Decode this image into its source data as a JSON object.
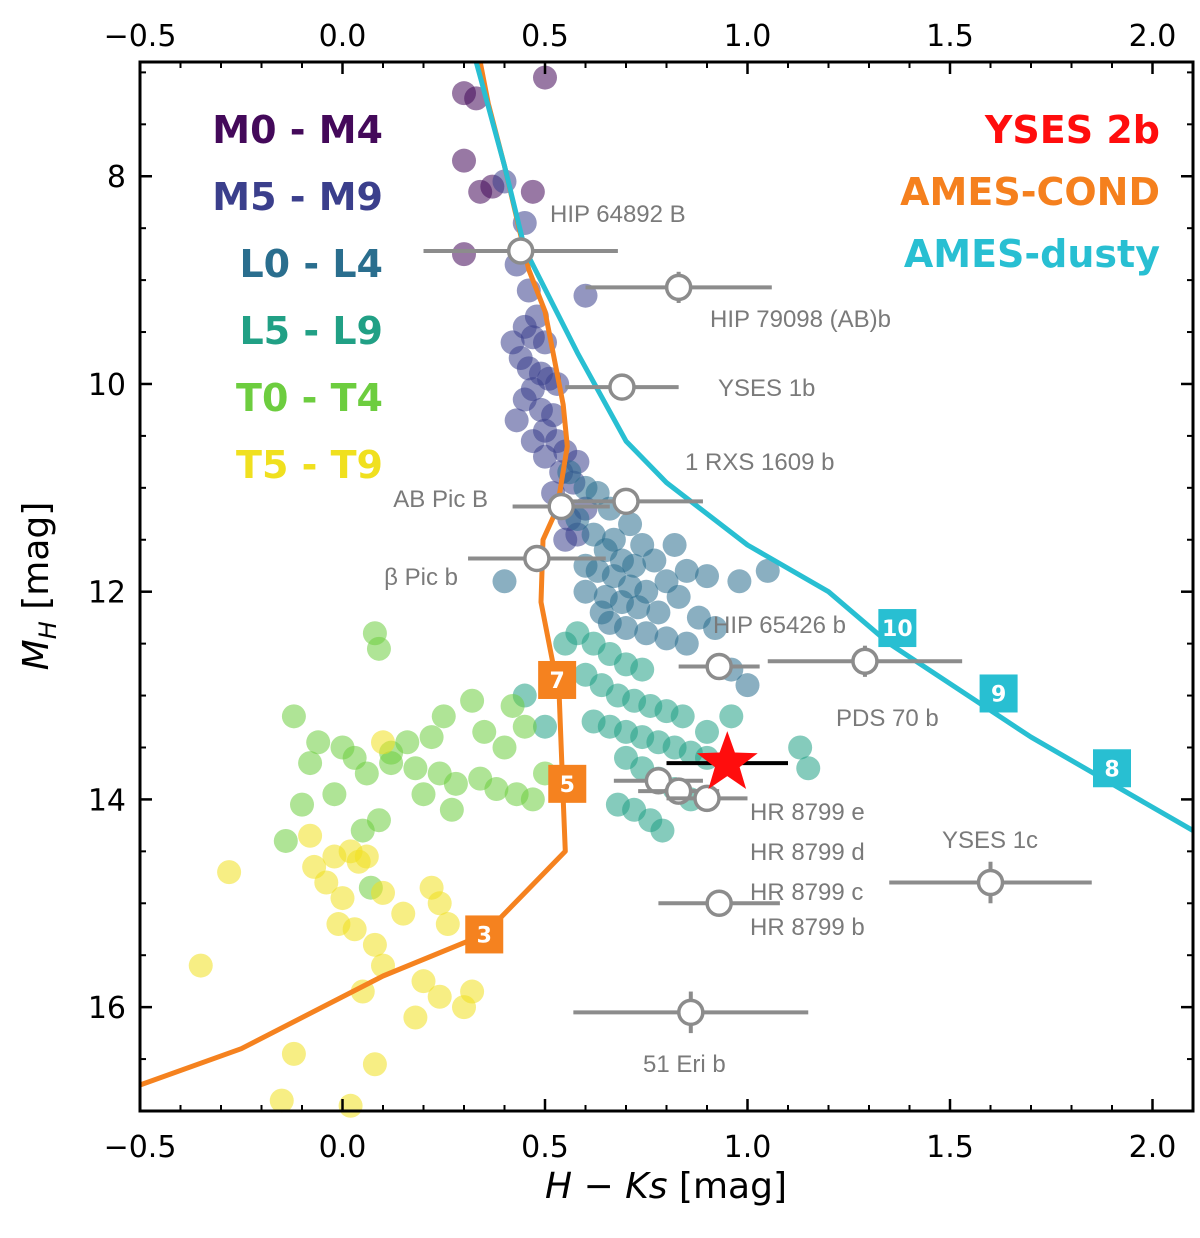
{
  "chart_data": {
    "type": "scatter",
    "xlabel": "H − Ks [mag]",
    "ylabel": "M_H [mag]",
    "xlim": [
      -0.5,
      2.1
    ],
    "ylim": [
      6.9,
      17.0
    ],
    "y_inverted": true,
    "x_ticks": [
      "−0.5",
      "0.0",
      "0.5",
      "1.0",
      "1.5",
      "2.0"
    ],
    "x_tick_values": [
      -0.5,
      0.0,
      0.5,
      1.0,
      1.5,
      2.0
    ],
    "y_ticks": [
      "8",
      "10",
      "12",
      "14",
      "16"
    ],
    "y_tick_values": [
      8,
      10,
      12,
      14,
      16
    ],
    "legend": [
      {
        "label": "M0 - M4",
        "color": "#44095a"
      },
      {
        "label": "M5 - M9",
        "color": "#3b3f8c"
      },
      {
        "label": "L0 - L4",
        "color": "#2a6e8e"
      },
      {
        "label": "L5 - L9",
        "color": "#21a085"
      },
      {
        "label": "T0 - T4",
        "color": "#6dcd3f"
      },
      {
        "label": "T5 - T9",
        "color": "#f0e01f"
      }
    ],
    "legend_right": [
      {
        "label": "YSES 2b",
        "color": "#ff0d0d"
      },
      {
        "label": "AMES-COND",
        "color": "#f5801e"
      },
      {
        "label": "AMES-dusty",
        "color": "#28bfd2"
      }
    ],
    "models": [
      {
        "name": "AMES-COND",
        "color": "#f5821f",
        "points": [
          [
            -0.5,
            16.75
          ],
          [
            -0.25,
            16.4
          ],
          [
            0.1,
            15.7
          ],
          [
            0.35,
            15.3
          ],
          [
            0.55,
            14.5
          ],
          [
            0.545,
            14.0
          ],
          [
            0.535,
            13.0
          ],
          [
            0.49,
            12.1
          ],
          [
            0.495,
            11.5
          ],
          [
            0.53,
            11.2
          ],
          [
            0.555,
            10.6
          ],
          [
            0.545,
            10.2
          ],
          [
            0.5,
            9.3
          ],
          [
            0.46,
            8.9
          ],
          [
            0.4,
            7.9
          ],
          [
            0.36,
            7.3
          ],
          [
            0.34,
            6.9
          ]
        ],
        "mass_labels": [
          {
            "x": 0.35,
            "y": 15.3,
            "label": "3"
          },
          {
            "x": 0.555,
            "y": 13.85,
            "label": "5"
          },
          {
            "x": 0.53,
            "y": 12.85,
            "label": "7"
          }
        ]
      },
      {
        "name": "AMES-dusty",
        "color": "#28bfd2",
        "points": [
          [
            0.33,
            6.9
          ],
          [
            0.4,
            7.9
          ],
          [
            0.45,
            8.7
          ],
          [
            0.58,
            9.7
          ],
          [
            0.7,
            10.55
          ],
          [
            0.8,
            10.95
          ],
          [
            1.0,
            11.55
          ],
          [
            1.2,
            12.0
          ],
          [
            1.35,
            12.5
          ],
          [
            1.7,
            13.4
          ],
          [
            2.1,
            14.3
          ]
        ],
        "mass_labels": [
          {
            "x": 1.37,
            "y": 12.35,
            "label": "10"
          },
          {
            "x": 1.62,
            "y": 12.98,
            "label": "9"
          },
          {
            "x": 1.9,
            "y": 13.7,
            "label": "8"
          }
        ]
      }
    ],
    "planets": [
      {
        "name": "HIP 64892 B",
        "x": 0.44,
        "y": 8.72,
        "xerr": 0.24,
        "yerr": 0.1
      },
      {
        "name": "HIP 79098 (AB)b",
        "x": 0.83,
        "y": 9.07,
        "xerr": 0.23,
        "yerr": 0.15
      },
      {
        "name": "YSES 1b",
        "x": 0.69,
        "y": 10.03,
        "xerr": 0.14,
        "yerr": 0.05
      },
      {
        "name": "1 RXS 1609 b",
        "x": 0.7,
        "y": 11.13,
        "xerr": 0.19,
        "yerr": 0.05
      },
      {
        "name": "AB Pic B",
        "x": 0.54,
        "y": 11.18,
        "xerr": 0.12,
        "yerr": 0.05
      },
      {
        "name": "β Pic b",
        "x": 0.48,
        "y": 11.68,
        "xerr": 0.17,
        "yerr": 0.05
      },
      {
        "name": "HIP 65426 b",
        "x": 0.93,
        "y": 12.72,
        "xerr": 0.1,
        "yerr": 0.08
      },
      {
        "name": "PDS 70 b",
        "x": 1.29,
        "y": 12.67,
        "xerr": 0.24,
        "yerr": 0.15
      },
      {
        "name": "HR 8799 e",
        "x": 0.78,
        "y": 13.82,
        "xerr": 0.11,
        "yerr": 0.05
      },
      {
        "name": "HR 8799 d",
        "x": 0.83,
        "y": 13.92,
        "xerr": 0.1,
        "yerr": 0.05
      },
      {
        "name": "HR 8799 c",
        "x": 0.9,
        "y": 13.99,
        "xerr": 0.1,
        "yerr": 0.05
      },
      {
        "name": "HR 8799 b",
        "x": 0.93,
        "y": 15.0,
        "xerr": 0.15,
        "yerr": 0.05
      },
      {
        "name": "YSES 1c",
        "x": 1.6,
        "y": 14.8,
        "xerr": 0.25,
        "yerr": 0.2
      },
      {
        "name": "51 Eri b",
        "x": 0.86,
        "y": 16.05,
        "xerr": 0.29,
        "yerr": 0.2
      }
    ],
    "target": {
      "name": "YSES 2b",
      "x": 0.95,
      "y": 13.65,
      "xerr": 0.15,
      "yerr": 0.08
    },
    "spectral_groups": [
      {
        "label": "M0 - M4",
        "color": "#44095a",
        "points": [
          [
            0.3,
            7.2
          ],
          [
            0.33,
            7.25
          ],
          [
            0.5,
            7.05
          ],
          [
            0.3,
            7.85
          ],
          [
            0.34,
            8.15
          ],
          [
            0.37,
            8.1
          ],
          [
            0.47,
            8.15
          ],
          [
            0.3,
            8.75
          ]
        ]
      },
      {
        "label": "M5 - M9",
        "color": "#3b3f8c",
        "points": [
          [
            0.4,
            8.05
          ],
          [
            0.45,
            8.45
          ],
          [
            0.43,
            8.85
          ],
          [
            0.46,
            9.1
          ],
          [
            0.6,
            9.15
          ],
          [
            0.45,
            9.45
          ],
          [
            0.47,
            9.55
          ],
          [
            0.5,
            9.6
          ],
          [
            0.44,
            9.75
          ],
          [
            0.46,
            9.85
          ],
          [
            0.49,
            9.9
          ],
          [
            0.51,
            9.95
          ],
          [
            0.47,
            10.05
          ],
          [
            0.45,
            10.15
          ],
          [
            0.49,
            10.25
          ],
          [
            0.52,
            10.3
          ],
          [
            0.5,
            10.45
          ],
          [
            0.53,
            10.55
          ],
          [
            0.55,
            10.65
          ],
          [
            0.5,
            10.7
          ],
          [
            0.54,
            10.85
          ],
          [
            0.57,
            10.95
          ],
          [
            0.52,
            11.05
          ],
          [
            0.56,
            11.3
          ],
          [
            0.58,
            11.45
          ],
          [
            0.55,
            11.5
          ],
          [
            0.6,
            11.2
          ],
          [
            0.42,
            9.6
          ],
          [
            0.48,
            9.35
          ],
          [
            0.53,
            10.0
          ],
          [
            0.43,
            10.35
          ],
          [
            0.47,
            10.55
          ],
          [
            0.58,
            10.75
          ]
        ]
      },
      {
        "label": "L0 - L4",
        "color": "#2a6e8e",
        "points": [
          [
            0.56,
            10.85
          ],
          [
            0.6,
            11.0
          ],
          [
            0.63,
            11.05
          ],
          [
            0.66,
            11.2
          ],
          [
            0.58,
            11.3
          ],
          [
            0.62,
            11.45
          ],
          [
            0.67,
            11.5
          ],
          [
            0.71,
            11.35
          ],
          [
            0.74,
            11.55
          ],
          [
            0.65,
            11.6
          ],
          [
            0.69,
            11.7
          ],
          [
            0.72,
            11.75
          ],
          [
            0.77,
            11.7
          ],
          [
            0.63,
            11.8
          ],
          [
            0.67,
            11.85
          ],
          [
            0.71,
            11.95
          ],
          [
            0.75,
            12.0
          ],
          [
            0.8,
            11.9
          ],
          [
            0.85,
            11.8
          ],
          [
            0.9,
            11.85
          ],
          [
            0.6,
            12.0
          ],
          [
            0.65,
            12.05
          ],
          [
            0.69,
            12.1
          ],
          [
            0.73,
            12.15
          ],
          [
            0.78,
            12.2
          ],
          [
            0.83,
            12.05
          ],
          [
            0.88,
            12.25
          ],
          [
            0.92,
            12.35
          ],
          [
            0.66,
            12.3
          ],
          [
            0.7,
            12.35
          ],
          [
            0.75,
            12.4
          ],
          [
            0.8,
            12.45
          ],
          [
            0.85,
            12.5
          ],
          [
            0.96,
            12.75
          ],
          [
            0.4,
            11.9
          ],
          [
            0.6,
            11.75
          ],
          [
            0.64,
            12.2
          ],
          [
            0.82,
            11.55
          ],
          [
            1.0,
            12.9
          ],
          [
            0.98,
            11.9
          ],
          [
            1.05,
            11.8
          ]
        ]
      },
      {
        "label": "L5 - L9",
        "color": "#21a085",
        "points": [
          [
            0.58,
            12.4
          ],
          [
            0.62,
            12.5
          ],
          [
            0.66,
            12.6
          ],
          [
            0.7,
            12.7
          ],
          [
            0.74,
            12.75
          ],
          [
            0.6,
            12.8
          ],
          [
            0.64,
            12.9
          ],
          [
            0.68,
            13.0
          ],
          [
            0.72,
            13.05
          ],
          [
            0.76,
            13.1
          ],
          [
            0.8,
            13.15
          ],
          [
            0.84,
            13.2
          ],
          [
            0.62,
            13.25
          ],
          [
            0.66,
            13.3
          ],
          [
            0.7,
            13.35
          ],
          [
            0.74,
            13.4
          ],
          [
            0.78,
            13.45
          ],
          [
            0.82,
            13.5
          ],
          [
            0.86,
            13.55
          ],
          [
            0.9,
            13.6
          ],
          [
            0.7,
            13.6
          ],
          [
            0.74,
            13.7
          ],
          [
            0.78,
            13.8
          ],
          [
            0.82,
            13.9
          ],
          [
            0.86,
            14.0
          ],
          [
            0.68,
            14.05
          ],
          [
            0.72,
            14.1
          ],
          [
            0.76,
            14.2
          ],
          [
            0.79,
            14.3
          ],
          [
            1.13,
            13.5
          ],
          [
            1.15,
            13.7
          ],
          [
            0.45,
            13.0
          ],
          [
            0.5,
            13.3
          ],
          [
            0.55,
            12.5
          ],
          [
            0.96,
            13.2
          ],
          [
            0.9,
            13.35
          ]
        ]
      },
      {
        "label": "T0 - T4",
        "color": "#6dcd3f",
        "points": [
          [
            0.08,
            12.4
          ],
          [
            0.09,
            12.55
          ],
          [
            -0.12,
            13.2
          ],
          [
            -0.06,
            13.45
          ],
          [
            0.0,
            13.5
          ],
          [
            -0.08,
            13.65
          ],
          [
            0.03,
            13.6
          ],
          [
            0.06,
            13.75
          ],
          [
            0.12,
            13.65
          ],
          [
            0.18,
            13.7
          ],
          [
            0.24,
            13.75
          ],
          [
            0.28,
            13.85
          ],
          [
            0.34,
            13.8
          ],
          [
            0.38,
            13.9
          ],
          [
            0.43,
            13.95
          ],
          [
            0.47,
            14.0
          ],
          [
            0.5,
            13.75
          ],
          [
            0.4,
            13.5
          ],
          [
            0.45,
            13.3
          ],
          [
            0.35,
            13.35
          ],
          [
            0.22,
            13.4
          ],
          [
            0.16,
            13.45
          ],
          [
            0.12,
            13.55
          ],
          [
            -0.02,
            13.95
          ],
          [
            -0.1,
            14.05
          ],
          [
            -0.14,
            14.4
          ],
          [
            0.05,
            14.3
          ],
          [
            0.09,
            14.2
          ],
          [
            0.07,
            14.85
          ],
          [
            0.25,
            13.2
          ],
          [
            0.32,
            13.05
          ],
          [
            0.42,
            13.1
          ],
          [
            0.2,
            13.95
          ],
          [
            0.27,
            14.1
          ]
        ]
      },
      {
        "label": "T5 - T9",
        "color": "#f0e01f",
        "points": [
          [
            -0.07,
            14.65
          ],
          [
            -0.02,
            14.55
          ],
          [
            0.02,
            14.5
          ],
          [
            0.04,
            14.6
          ],
          [
            0.06,
            14.55
          ],
          [
            -0.04,
            14.8
          ],
          [
            0.0,
            14.95
          ],
          [
            -0.01,
            15.2
          ],
          [
            0.1,
            14.9
          ],
          [
            0.15,
            15.1
          ],
          [
            0.22,
            14.85
          ],
          [
            0.24,
            15.0
          ],
          [
            0.26,
            15.2
          ],
          [
            0.03,
            15.25
          ],
          [
            0.08,
            15.4
          ],
          [
            0.1,
            15.6
          ],
          [
            0.2,
            15.75
          ],
          [
            0.24,
            15.9
          ],
          [
            0.3,
            16.0
          ],
          [
            0.32,
            15.85
          ],
          [
            0.18,
            16.1
          ],
          [
            -0.28,
            14.7
          ],
          [
            -0.35,
            15.6
          ],
          [
            0.08,
            16.55
          ],
          [
            -0.12,
            16.45
          ],
          [
            -0.15,
            16.9
          ],
          [
            0.02,
            16.95
          ],
          [
            -0.08,
            14.35
          ],
          [
            0.1,
            13.45
          ],
          [
            0.05,
            15.85
          ]
        ]
      }
    ]
  }
}
